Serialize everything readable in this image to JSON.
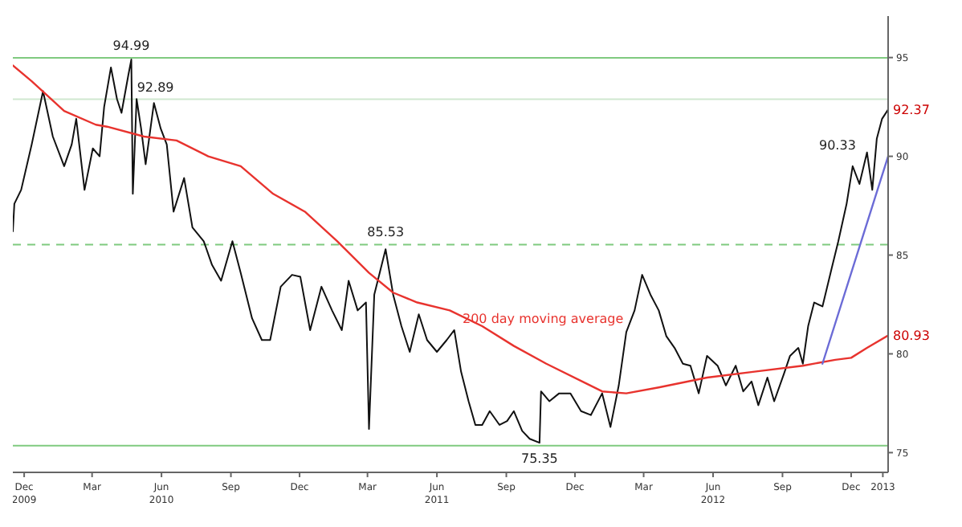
{
  "chart_data": {
    "type": "line",
    "xlim": [
      "2009-11-16",
      "2013-01-19"
    ],
    "ylim": [
      74,
      97.1
    ],
    "xticks": [
      {
        "value": "2009-12-01",
        "label": "Dec\n2009"
      },
      {
        "value": "2010-03-01",
        "label": "Mar"
      },
      {
        "value": "2010-06-01",
        "label": "Jun\n2010"
      },
      {
        "value": "2010-09-01",
        "label": "Sep"
      },
      {
        "value": "2010-12-01",
        "label": "Dec"
      },
      {
        "value": "2011-03-01",
        "label": "Mar"
      },
      {
        "value": "2011-06-01",
        "label": "Jun\n2011"
      },
      {
        "value": "2011-09-01",
        "label": "Sep"
      },
      {
        "value": "2011-12-01",
        "label": "Dec"
      },
      {
        "value": "2012-03-01",
        "label": "Mar"
      },
      {
        "value": "2012-06-01",
        "label": "Jun\n2012"
      },
      {
        "value": "2012-09-01",
        "label": "Sep"
      },
      {
        "value": "2012-12-01",
        "label": "Dec"
      },
      {
        "value": "2013-01-12",
        "label": "2013"
      }
    ],
    "yticks": [
      75,
      80,
      85,
      90,
      95
    ],
    "marker": "none",
    "line_style": "solid",
    "ref_lines": [
      {
        "axis": "y",
        "value": 94.99,
        "color": "#7fca7f"
      },
      {
        "axis": "y",
        "value": 92.89,
        "color": "#cfe8cf"
      },
      {
        "axis": "y",
        "value": 85.53,
        "color": "#7fca7f",
        "line_style": "dashed"
      },
      {
        "axis": "y",
        "value": 75.35,
        "color": "#7fca7f"
      }
    ],
    "annotations": [
      {
        "text": "94.99",
        "x": "2010-04-22",
        "y": 94.99
      },
      {
        "text": "92.89",
        "x": "2010-05-24",
        "y": 92.89
      },
      {
        "text": "85.53",
        "x": "2011-03-25",
        "y": 85.53
      },
      {
        "text": "75.35",
        "x": "2011-10-15",
        "y": 75.35
      },
      {
        "text": "92.37",
        "x": "2013-01-19",
        "y": 92.37
      },
      {
        "text": "80.93",
        "x": "2013-01-19",
        "y": 80.93
      },
      "90.33",
      "200 day moving average"
    ],
    "series": [
      {
        "color": "#111111",
        "x": [
          "2009-11-16",
          "2009-11-18",
          "2009-11-27",
          "2009-12-11",
          "2009-12-26",
          "2010-01-08",
          "2010-01-23",
          "2010-02-02",
          "2010-02-08",
          "2010-02-19",
          "2010-03-02",
          "2010-03-11",
          "2010-03-17",
          "2010-03-26",
          "2010-04-03",
          "2010-04-09",
          "2010-04-18",
          "2010-04-22",
          "2010-04-24",
          "2010-04-29",
          "2010-05-05",
          "2010-05-11",
          "2010-05-22",
          "2010-05-31",
          "2010-06-08",
          "2010-06-17",
          "2010-07-01",
          "2010-07-12",
          "2010-07-27",
          "2010-08-07",
          "2010-08-19",
          "2010-09-03",
          "2010-09-14",
          "2010-09-29",
          "2010-10-12",
          "2010-10-23",
          "2010-11-06",
          "2010-11-21",
          "2010-12-02",
          "2010-12-15",
          "2010-12-30",
          "2011-01-13",
          "2011-01-26",
          "2011-02-04",
          "2011-02-16",
          "2011-02-27",
          "2011-03-03",
          "2011-03-10",
          "2011-03-25",
          "2011-04-04",
          "2011-04-15",
          "2011-04-26",
          "2011-05-08",
          "2011-05-19",
          "2011-06-01",
          "2011-06-14",
          "2011-06-24",
          "2011-07-03",
          "2011-07-13",
          "2011-07-22",
          "2011-07-31",
          "2011-08-10",
          "2011-08-23",
          "2011-09-02",
          "2011-09-11",
          "2011-09-22",
          "2011-10-02",
          "2011-10-15",
          "2011-10-17",
          "2011-10-28",
          "2011-11-10",
          "2011-11-25",
          "2011-12-09",
          "2011-12-22",
          "2012-01-06",
          "2012-01-17",
          "2012-01-28",
          "2012-02-07",
          "2012-02-18",
          "2012-02-28",
          "2012-03-10",
          "2012-03-21",
          "2012-03-31",
          "2012-04-11",
          "2012-04-22",
          "2012-05-02",
          "2012-05-13",
          "2012-05-24",
          "2012-06-07",
          "2012-06-18",
          "2012-07-01",
          "2012-07-11",
          "2012-07-22",
          "2012-07-31",
          "2012-08-12",
          "2012-08-21",
          "2012-09-03",
          "2012-09-11",
          "2012-09-22",
          "2012-09-28",
          "2012-10-05",
          "2012-10-13",
          "2012-10-24",
          "2012-11-05",
          "2012-11-14",
          "2012-11-25",
          "2012-12-03",
          "2012-12-12",
          "2012-12-22",
          "2012-12-29",
          "2013-01-04",
          "2013-01-11",
          "2013-01-19"
        ],
        "values": [
          86.2,
          87.6,
          88.3,
          90.6,
          93.3,
          91.0,
          89.5,
          90.6,
          91.9,
          88.3,
          90.4,
          90.0,
          92.5,
          94.5,
          92.9,
          92.2,
          94.1,
          94.9,
          88.1,
          92.9,
          91.4,
          89.6,
          92.7,
          91.4,
          90.6,
          87.2,
          88.9,
          86.4,
          85.7,
          84.5,
          83.7,
          85.7,
          84.1,
          81.8,
          80.7,
          80.7,
          83.4,
          84.0,
          83.9,
          81.2,
          83.4,
          82.2,
          81.2,
          83.7,
          82.2,
          82.6,
          76.2,
          83.0,
          85.3,
          83.0,
          81.4,
          80.1,
          82.0,
          80.7,
          80.1,
          80.7,
          81.2,
          79.1,
          77.6,
          76.4,
          76.4,
          77.1,
          76.4,
          76.6,
          77.1,
          76.1,
          75.7,
          75.5,
          78.1,
          77.6,
          78.0,
          78.0,
          77.1,
          76.9,
          78.0,
          76.3,
          78.4,
          81.1,
          82.2,
          84.0,
          83.0,
          82.2,
          80.9,
          80.3,
          79.5,
          79.4,
          78.0,
          79.9,
          79.4,
          78.4,
          79.4,
          78.1,
          78.6,
          77.4,
          78.8,
          77.6,
          79.0,
          79.9,
          80.3,
          79.5,
          81.4,
          82.6,
          82.4,
          84.3,
          85.7,
          87.6,
          89.5,
          88.6,
          90.2,
          88.3,
          90.9,
          91.9,
          92.37
        ]
      },
      {
        "color": "#e8332e",
        "x": [
          "2009-11-16",
          "2009-12-11",
          "2010-01-23",
          "2010-03-06",
          "2010-03-21",
          "2010-05-09",
          "2010-06-21",
          "2010-08-02",
          "2010-09-14",
          "2010-10-27",
          "2010-12-08",
          "2011-01-20",
          "2011-03-03",
          "2011-04-04",
          "2011-05-06",
          "2011-06-18",
          "2011-07-31",
          "2011-09-11",
          "2011-10-24",
          "2011-12-16",
          "2012-01-06",
          "2012-02-07",
          "2012-03-21",
          "2012-05-24",
          "2012-07-26",
          "2012-09-28",
          "2012-11-10",
          "2012-12-01",
          "2012-12-22",
          "2013-01-19"
        ],
        "values": [
          94.6,
          93.8,
          92.3,
          91.6,
          91.5,
          91.0,
          90.8,
          90.0,
          89.5,
          88.1,
          87.2,
          85.7,
          84.1,
          83.1,
          82.6,
          82.2,
          81.4,
          80.4,
          79.5,
          78.5,
          78.1,
          78.0,
          78.3,
          78.8,
          79.1,
          79.4,
          79.7,
          79.8,
          80.3,
          80.93
        ]
      },
      {
        "color": "#6b6bd6",
        "x": [
          "2012-10-24",
          "2013-01-19"
        ],
        "values": [
          79.5,
          90.0
        ]
      }
    ]
  }
}
